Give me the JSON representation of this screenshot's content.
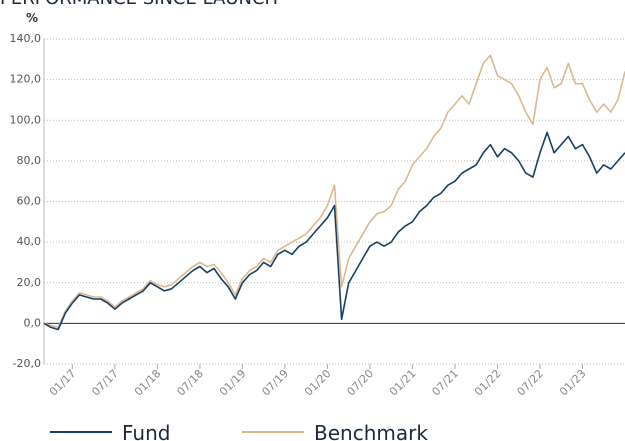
{
  "chart_data": {
    "type": "line",
    "title": "PERFORMANCE SINCE LAUNCH",
    "y_label": "%",
    "categories": [
      null,
      null,
      null,
      null,
      "01/17",
      null,
      null,
      null,
      null,
      null,
      "07/17",
      null,
      null,
      null,
      null,
      null,
      "01/18",
      null,
      null,
      null,
      null,
      null,
      "07/18",
      null,
      null,
      null,
      null,
      null,
      "01/19",
      null,
      null,
      null,
      null,
      null,
      "07/19",
      null,
      null,
      null,
      null,
      null,
      "01/20",
      null,
      null,
      null,
      null,
      null,
      "07/20",
      null,
      null,
      null,
      null,
      null,
      "01/21",
      null,
      null,
      null,
      null,
      null,
      "07/21",
      null,
      null,
      null,
      null,
      null,
      "01/22",
      null,
      null,
      null,
      null,
      null,
      "07/22",
      null,
      null,
      null,
      null,
      null,
      "01/23",
      null,
      null,
      null,
      null,
      null,
      null
    ],
    "series": [
      {
        "name": "Fund",
        "color": "#173f66",
        "values": [
          0,
          -2,
          -3,
          5,
          10,
          14,
          13,
          12,
          12,
          10,
          7,
          10,
          12,
          14,
          16,
          20,
          18,
          16,
          17,
          20,
          23,
          26,
          28,
          25,
          27,
          22,
          18,
          12,
          20,
          24,
          26,
          30,
          28,
          34,
          36,
          34,
          38,
          40,
          44,
          48,
          52,
          58,
          2,
          20,
          26,
          32,
          38,
          40,
          38,
          40,
          45,
          48,
          50,
          55,
          58,
          62,
          64,
          68,
          70,
          74,
          76,
          78,
          84,
          88,
          82,
          86,
          84,
          80,
          74,
          72,
          84,
          94,
          84,
          88,
          92,
          86,
          88,
          82,
          74,
          78,
          76,
          80,
          84
        ]
      },
      {
        "name": "Benchmark",
        "color": "#dcb88f",
        "values": [
          0,
          -1,
          -2,
          6,
          11,
          15,
          14,
          13,
          13,
          11,
          8,
          11,
          13,
          15,
          17,
          21,
          19,
          18,
          19,
          22,
          25,
          28,
          30,
          28,
          29,
          25,
          20,
          14,
          22,
          26,
          28,
          32,
          30,
          36,
          38,
          40,
          42,
          44,
          48,
          52,
          58,
          68,
          18,
          32,
          38,
          44,
          50,
          54,
          55,
          58,
          66,
          70,
          78,
          82,
          86,
          92,
          96,
          104,
          108,
          112,
          108,
          118,
          128,
          132,
          122,
          120,
          118,
          112,
          104,
          98,
          120,
          126,
          116,
          118,
          128,
          118,
          118,
          110,
          104,
          108,
          104,
          110,
          124
        ]
      }
    ],
    "ylim": [
      -20,
      140
    ],
    "yticks": [
      {
        "value": -20,
        "label": "-20,0"
      },
      {
        "value": 0,
        "label": "0,0"
      },
      {
        "value": 20,
        "label": "20,0"
      },
      {
        "value": 40,
        "label": "40,0"
      },
      {
        "value": 60,
        "label": "60,0"
      },
      {
        "value": 80,
        "label": "80,0"
      },
      {
        "value": 100,
        "label": "100,0"
      },
      {
        "value": 120,
        "label": "120,0"
      },
      {
        "value": 140,
        "label": "140,0"
      }
    ],
    "grid": true
  }
}
